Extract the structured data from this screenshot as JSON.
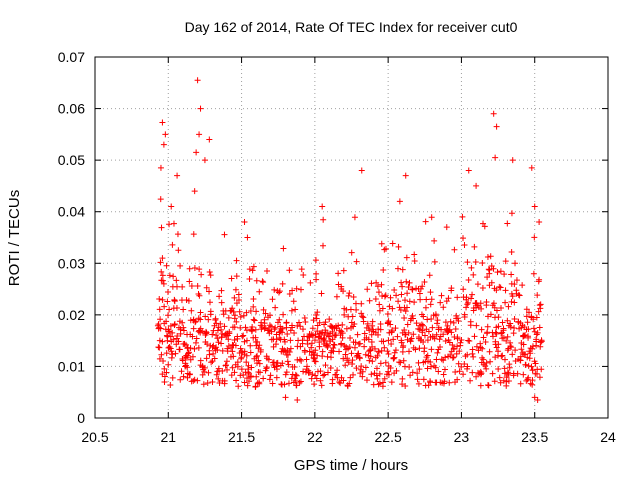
{
  "chart_data": {
    "type": "scatter",
    "title": "Day 162 of 2014, Rate Of TEC Index for receiver cut0",
    "xlabel": "GPS time / hours",
    "ylabel": "ROTI / TECUs",
    "xlim": [
      20.5,
      24
    ],
    "ylim": [
      0,
      0.07
    ],
    "x_ticks": [
      "20.5",
      "21",
      "21.5",
      "22",
      "22.5",
      "23",
      "23.5",
      "24"
    ],
    "y_ticks": [
      "0",
      "0.01",
      "0.02",
      "0.03",
      "0.04",
      "0.05",
      "0.06",
      "0.07"
    ],
    "grid": true,
    "marker": "plus",
    "series_color": "#ff0000",
    "time_range": [
      20.93,
      23.55
    ],
    "sample_step_hours": 0.004,
    "points_sample": [
      [
        20.96,
        0.0573
      ],
      [
        20.97,
        0.053
      ],
      [
        20.98,
        0.055
      ],
      [
        20.95,
        0.0485
      ],
      [
        20.96,
        0.031
      ],
      [
        20.97,
        0.026
      ],
      [
        21.02,
        0.041
      ],
      [
        21.06,
        0.047
      ],
      [
        21.2,
        0.0655
      ],
      [
        21.22,
        0.06
      ],
      [
        21.21,
        0.055
      ],
      [
        21.19,
        0.0515
      ],
      [
        21.25,
        0.05
      ],
      [
        21.28,
        0.054
      ],
      [
        21.18,
        0.044
      ],
      [
        21.52,
        0.038
      ],
      [
        21.54,
        0.035
      ],
      [
        22.05,
        0.041
      ],
      [
        22.32,
        0.048
      ],
      [
        22.58,
        0.042
      ],
      [
        22.62,
        0.047
      ],
      [
        22.9,
        0.037
      ],
      [
        23.05,
        0.048
      ],
      [
        23.1,
        0.045
      ],
      [
        23.22,
        0.059
      ],
      [
        23.24,
        0.0565
      ],
      [
        23.23,
        0.0505
      ],
      [
        23.35,
        0.05
      ],
      [
        23.48,
        0.0485
      ],
      [
        23.5,
        0.041
      ],
      [
        23.53,
        0.038
      ],
      [
        22.05,
        0.012
      ],
      [
        22.5,
        0.009
      ],
      [
        21.6,
        0.008
      ],
      [
        21.8,
        0.004
      ],
      [
        21.88,
        0.0035
      ],
      [
        23.1,
        0.008
      ],
      [
        23.5,
        0.004
      ],
      [
        23.52,
        0.0035
      ],
      [
        22.2,
        0.02
      ]
    ]
  }
}
